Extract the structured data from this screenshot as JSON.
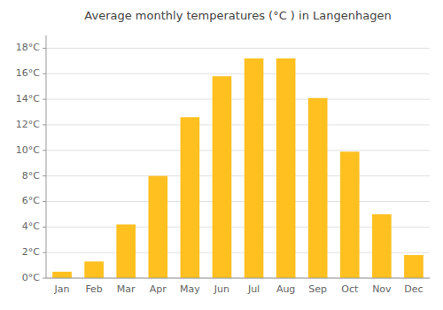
{
  "chart_data": {
    "type": "bar",
    "title": "Average monthly temperatures (°C ) in Langenhagen",
    "categories": [
      "Jan",
      "Feb",
      "Mar",
      "Apr",
      "May",
      "Jun",
      "Jul",
      "Aug",
      "Sep",
      "Oct",
      "Nov",
      "Dec"
    ],
    "values": [
      0.5,
      1.3,
      4.2,
      8.0,
      12.6,
      15.8,
      17.2,
      17.2,
      14.1,
      9.9,
      5.0,
      1.8
    ],
    "color": "#FFC020",
    "ylim": [
      0,
      19
    ],
    "yticks": [
      {
        "value": 0,
        "label": "0°C"
      },
      {
        "value": 2,
        "label": "2°C"
      },
      {
        "value": 4,
        "label": "4°C"
      },
      {
        "value": 6,
        "label": "6°C"
      },
      {
        "value": 8,
        "label": "8°C"
      },
      {
        "value": 10,
        "label": "10°C"
      },
      {
        "value": 12,
        "label": "12°C"
      },
      {
        "value": 14,
        "label": "14°C"
      },
      {
        "value": 16,
        "label": "16°C"
      },
      {
        "value": 18,
        "label": "18°C"
      }
    ],
    "grid": true
  }
}
